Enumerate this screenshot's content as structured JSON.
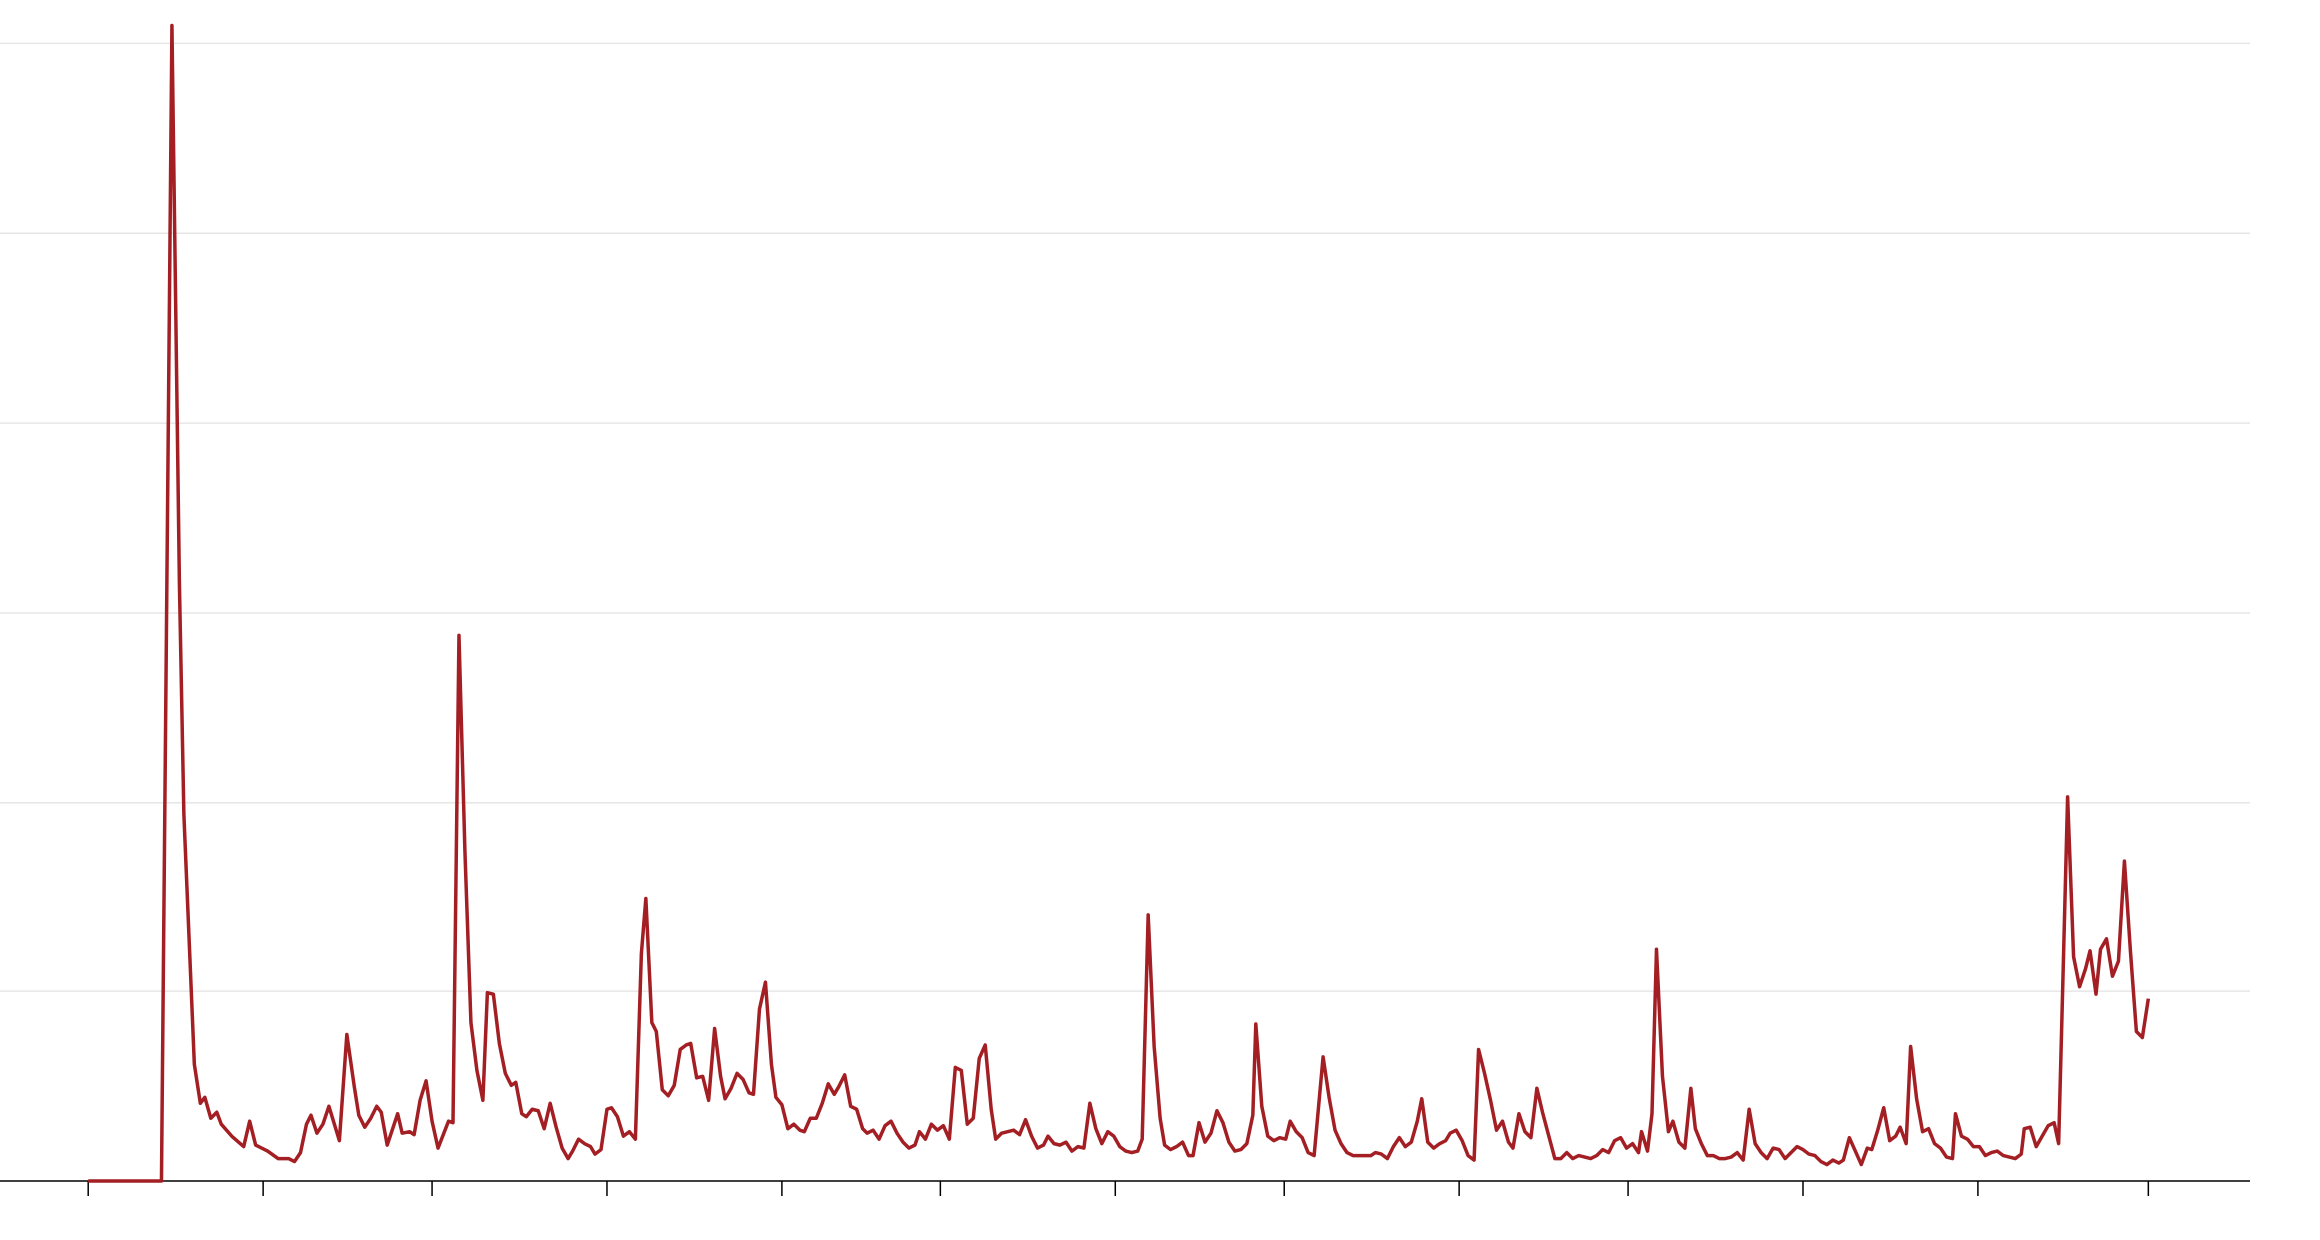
{
  "chart_data": {
    "type": "line",
    "color": "#a31f24",
    "grid": true,
    "xlim": [
      -59,
      1446
    ],
    "ylim": [
      0,
      780
    ],
    "xticks": [
      0,
      117,
      230,
      347,
      464,
      570,
      687,
      800,
      917,
      1030,
      1147,
      1264,
      1378
    ],
    "yticks": [
      0,
      127,
      253,
      380,
      507,
      634,
      761
    ],
    "x": [
      0,
      49,
      56,
      61,
      64,
      71,
      75,
      78,
      82,
      86,
      89,
      96,
      104,
      108,
      112,
      120,
      127,
      134,
      138,
      142,
      146,
      149,
      153,
      157,
      161,
      168,
      173,
      178,
      181,
      185,
      189,
      193,
      196,
      200,
      207,
      210,
      215,
      218,
      222,
      226,
      230,
      234,
      241,
      244,
      248,
      252,
      256,
      260,
      264,
      267,
      271,
      275,
      279,
      283,
      286,
      290,
      293,
      297,
      301,
      305,
      309,
      313,
      317,
      321,
      324,
      328,
      332,
      336,
      339,
      343,
      347,
      350,
      354,
      358,
      362,
      366,
      370,
      373,
      377,
      380,
      384,
      388,
      392,
      396,
      400,
      403,
      407,
      411,
      415,
      419,
      423,
      426,
      430,
      434,
      438,
      442,
      445,
      449,
      453,
      457,
      460,
      464,
      468,
      472,
      476,
      479,
      483,
      487,
      491,
      495,
      499,
      502,
      506,
      510,
      514,
      518,
      521,
      525,
      529,
      533,
      537,
      541,
      545,
      549,
      553,
      556,
      560,
      564,
      568,
      572,
      576,
      580,
      584,
      588,
      592,
      596,
      600,
      604,
      607,
      611,
      615,
      619,
      623,
      627,
      631,
      635,
      639,
      642,
      646,
      650,
      654,
      658,
      662,
      666,
      670,
      674,
      678,
      682,
      686,
      690,
      694,
      698,
      702,
      705,
      709,
      713,
      717,
      720,
      724,
      728,
      732,
      736,
      739,
      743,
      747,
      751,
      755,
      759,
      763,
      767,
      771,
      775,
      779,
      781,
      785,
      789,
      793,
      797,
      801,
      804,
      808,
      812,
      816,
      820,
      826,
      830,
      834,
      838,
      842,
      846,
      850,
      854,
      858,
      861,
      865,
      869,
      873,
      877,
      881,
      885,
      889,
      892,
      896,
      900,
      904,
      908,
      911,
      915,
      919,
      923,
      927,
      930,
      934,
      938,
      942,
      946,
      950,
      953,
      957,
      961,
      965,
      969,
      973,
      977,
      981,
      985,
      989,
      993,
      997,
      1001,
      1005,
      1009,
      1013,
      1017,
      1021,
      1025,
      1029,
      1033,
      1037,
      1039,
      1043,
      1046,
      1049,
      1053,
      1057,
      1060,
      1064,
      1068,
      1072,
      1075,
      1079,
      1083,
      1087,
      1091,
      1095,
      1099,
      1103,
      1107,
      1111,
      1115,
      1119,
      1123,
      1127,
      1131,
      1135,
      1139,
      1143,
      1147,
      1151,
      1155,
      1159,
      1163,
      1167,
      1171,
      1174,
      1178,
      1182,
      1186,
      1190,
      1193,
      1197,
      1201,
      1205,
      1209,
      1212,
      1216,
      1219,
      1223,
      1227,
      1231,
      1235,
      1239,
      1243,
      1247,
      1249,
      1253,
      1257,
      1261,
      1265,
      1269,
      1273,
      1277,
      1281,
      1285,
      1289,
      1293,
      1295,
      1299,
      1303,
      1307,
      1311,
      1315,
      1318,
      1321,
      1324,
      1328,
      1332,
      1336,
      1339,
      1343,
      1346,
      1350,
      1354,
      1358,
      1362,
      1366,
      1370,
      1374,
      1378
    ],
    "values": [
      0,
      0,
      773,
      400,
      245,
      78,
      52,
      56,
      42,
      46,
      38,
      30,
      23,
      40,
      24,
      20,
      15,
      15,
      13,
      19,
      38,
      44,
      32,
      38,
      50,
      27,
      98,
      63,
      44,
      36,
      42,
      50,
      46,
      24,
      45,
      32,
      33,
      31,
      54,
      67,
      40,
      22,
      40,
      39,
      365,
      220,
      106,
      74,
      54,
      126,
      125,
      92,
      72,
      64,
      66,
      45,
      43,
      48,
      47,
      35,
      52,
      36,
      22,
      15,
      20,
      28,
      25,
      23,
      18,
      21,
      48,
      49,
      43,
      30,
      33,
      28,
      152,
      189,
      106,
      100,
      61,
      57,
      64,
      88,
      91,
      92,
      69,
      70,
      54,
      102,
      70,
      55,
      62,
      72,
      68,
      59,
      58,
      115,
      133,
      78,
      56,
      51,
      35,
      38,
      34,
      33,
      42,
      42,
      52,
      65,
      58,
      63,
      71,
      50,
      48,
      35,
      32,
      34,
      28,
      37,
      40,
      32,
      26,
      22,
      24,
      33,
      28,
      38,
      34,
      37,
      28,
      76,
      74,
      38,
      42,
      82,
      91,
      48,
      28,
      32,
      33,
      34,
      31,
      41,
      30,
      22,
      24,
      30,
      25,
      24,
      26,
      20,
      23,
      22,
      52,
      35,
      25,
      33,
      30,
      23,
      20,
      19,
      20,
      28,
      178,
      90,
      42,
      24,
      21,
      23,
      26,
      17,
      17,
      39,
      26,
      32,
      47,
      39,
      26,
      20,
      21,
      25,
      44,
      105,
      50,
      30,
      27,
      29,
      28,
      40,
      33,
      29,
      19,
      17,
      83,
      56,
      34,
      25,
      19,
      17,
      17,
      17,
      17,
      19,
      18,
      15,
      23,
      29,
      23,
      26,
      40,
      55,
      26,
      22,
      25,
      27,
      32,
      34,
      27,
      17,
      14,
      88,
      72,
      54,
      34,
      40,
      26,
      22,
      45,
      33,
      29,
      62,
      45,
      30,
      15,
      15,
      19,
      15,
      17,
      16,
      15,
      17,
      21,
      19,
      27,
      29,
      22,
      25,
      19,
      33,
      20,
      45,
      155,
      70,
      33,
      40,
      26,
      22,
      62,
      35,
      25,
      17,
      17,
      15,
      15,
      16,
      19,
      14,
      48,
      25,
      19,
      15,
      22,
      21,
      15,
      19,
      23,
      21,
      18,
      17,
      13,
      11,
      14,
      12,
      14,
      29,
      20,
      11,
      22,
      21,
      34,
      49,
      27,
      30,
      36,
      25,
      90,
      55,
      33,
      35,
      25,
      22,
      16,
      15,
      45,
      30,
      28,
      23,
      23,
      17,
      19,
      20,
      17,
      16,
      15,
      18,
      35,
      36,
      23,
      30,
      37,
      39,
      25,
      140,
      257,
      150,
      130,
      142,
      154,
      125,
      155,
      162,
      137,
      147,
      214,
      154,
      100,
      96,
      122
    ]
  }
}
